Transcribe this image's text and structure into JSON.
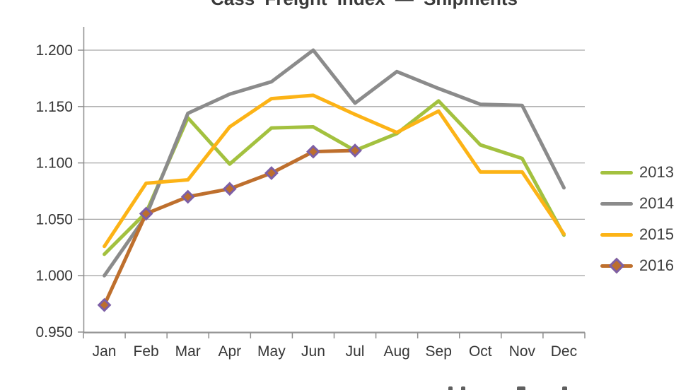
{
  "title": "Cass Freight Index — Shipments",
  "colors": {
    "background": "#ffffff",
    "grid": "#a6a6a6",
    "axis": "#8e8e8e",
    "tick_text": "#363636",
    "title_text": "#3a3a3a",
    "legend_text": "#404040"
  },
  "chart_data": {
    "type": "line",
    "title": "Cass Freight Index — Shipments",
    "xlabel": "",
    "ylabel": "",
    "grid": "horizontal",
    "legend_position": "right",
    "ylim": [
      0.95,
      1.2
    ],
    "yticks": [
      0.95,
      1.0,
      1.05,
      1.1,
      1.15,
      1.2
    ],
    "ytick_labels": [
      "0.950",
      "1.000",
      "1.050",
      "1.100",
      "1.150",
      "1.200"
    ],
    "categories": [
      "Jan",
      "Feb",
      "Mar",
      "Apr",
      "May",
      "Jun",
      "Jul",
      "Aug",
      "Sep",
      "Oct",
      "Nov",
      "Dec"
    ],
    "series": [
      {
        "name": "2013",
        "color": "#a3c13f",
        "marker": "none",
        "values": [
          1.019,
          1.056,
          1.14,
          1.099,
          1.131,
          1.132,
          1.111,
          1.126,
          1.155,
          1.116,
          1.104,
          1.036
        ]
      },
      {
        "name": "2014",
        "color": "#8b8b8b",
        "marker": "none",
        "values": [
          1.0,
          1.053,
          1.144,
          1.161,
          1.172,
          1.2,
          1.153,
          1.181,
          1.166,
          1.152,
          1.151,
          1.078
        ]
      },
      {
        "name": "2015",
        "color": "#fcb316",
        "marker": "none",
        "values": [
          1.026,
          1.082,
          1.085,
          1.132,
          1.157,
          1.16,
          1.143,
          1.127,
          1.146,
          1.092,
          1.092,
          1.037
        ]
      },
      {
        "name": "2016",
        "color": "#be6f2d",
        "marker": "diamond",
        "marker_fill": "#bc6e2e",
        "marker_stroke": "#7d5fa6",
        "values": [
          0.974,
          1.055,
          1.07,
          1.077,
          1.091,
          1.11,
          1.111
        ]
      }
    ]
  }
}
